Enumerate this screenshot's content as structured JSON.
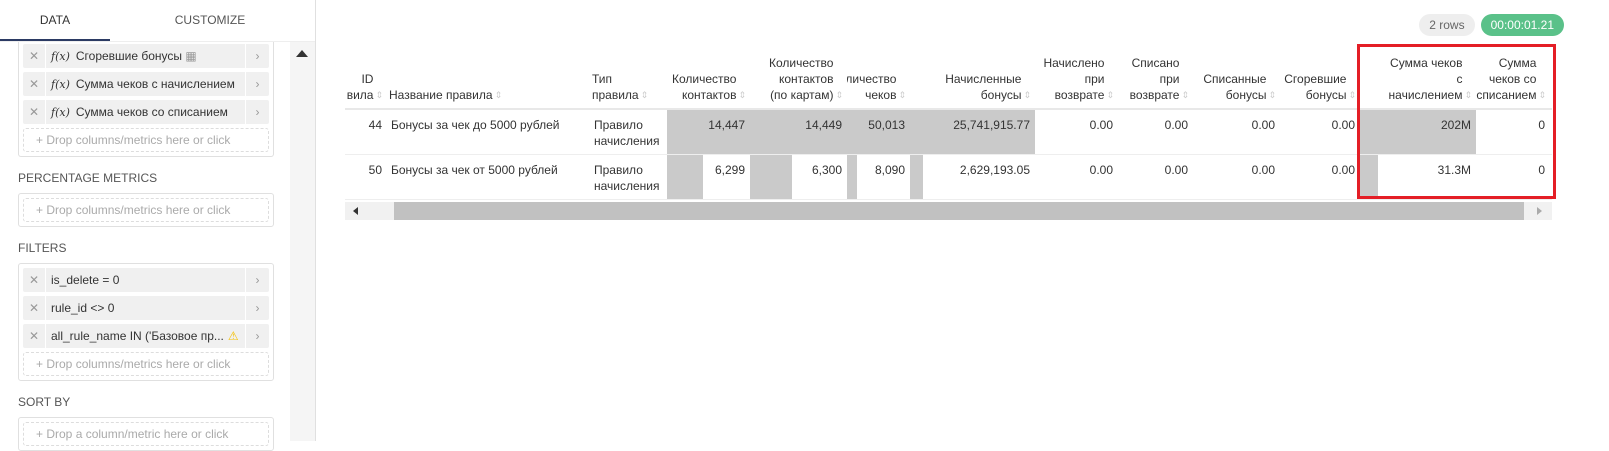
{
  "tabs": [
    "DATA",
    "CUSTOMIZE"
  ],
  "metrics": [
    "Сгоревшие бонусы",
    "Сумма чеков с начислением",
    "Сумма чеков со списанием"
  ],
  "drop_label": "Drop columns/metrics here or click",
  "drop_single_label": "Drop a column/metric here or click",
  "sections": {
    "percentage": "PERCENTAGE METRICS",
    "filters": "FILTERS",
    "sort": "SORT BY"
  },
  "filters": [
    "is_delete = 0",
    "rule_id <> 0",
    "all_rule_name IN ('Базовое пр..."
  ],
  "status": {
    "rows": "2 rows",
    "time": "00:00:01.21"
  },
  "colors": {
    "accent": "#2b3a63",
    "success": "#5ac189",
    "highlight": "#e41e26",
    "bar": "#cacaca"
  },
  "table": {
    "columns": [
      "ID\nвила",
      "Название правила",
      "Тип\nправила",
      "Количество\nконтактов",
      "Количество\nконтактов\n(по картам)",
      "Количество\nчеков",
      "Начисленные\nбонусы",
      "Начислено\nпри\nвозврате",
      "Списано\nпри\nвозврате",
      "Списанные\nбонусы",
      "Сгоревшие\nбонусы",
      "Сумма чеков\nс\nначислением",
      "Сумма\nчеков со\nсписанием"
    ],
    "rows": [
      {
        "cells": [
          "44",
          "Бонусы за чек до 5000 рублей",
          "Правило начисления",
          "14,447",
          "14,449",
          "50,013",
          "25,741,915.77",
          "0.00",
          "0.00",
          "0.00",
          "0.00",
          "202M",
          "0"
        ],
        "bars": [
          null,
          null,
          null,
          1,
          1,
          1,
          1,
          0,
          0,
          0,
          0,
          1,
          0
        ]
      },
      {
        "cells": [
          "50",
          "Бонусы за чек от 5000 рублей",
          "Правило начисления",
          "6,299",
          "6,300",
          "8,090",
          "2,629,193.05",
          "0.00",
          "0.00",
          "0.00",
          "0.00",
          "31.3M",
          "0"
        ],
        "bars": [
          null,
          null,
          null,
          0.436,
          0.436,
          0.162,
          0.102,
          0,
          0,
          0,
          0,
          0.155,
          0
        ]
      }
    ]
  }
}
